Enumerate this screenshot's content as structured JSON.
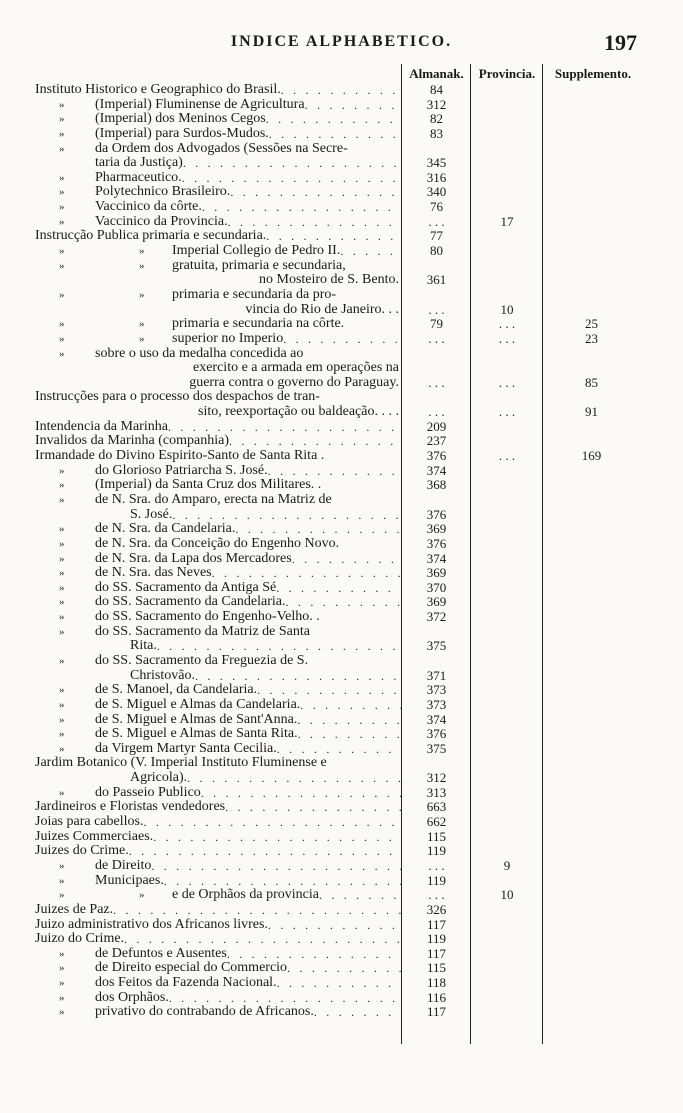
{
  "header": {
    "title": "INDICE ALPHABETICO.",
    "page_number": "197"
  },
  "columns": {
    "almanak": "Almanak.",
    "provincia": "Provincia.",
    "supplemento": "Supplemento."
  },
  "rows": [
    {
      "level": 0,
      "text": "Instituto Historico e Geographico do Brasil.",
      "leader": true,
      "alm": "84"
    },
    {
      "level": 1,
      "ditto": [
        "»"
      ],
      "text": "(Imperial) Fluminense de Agricultura",
      "leader": true,
      "alm": "312"
    },
    {
      "level": 1,
      "ditto": [
        "»"
      ],
      "text": "(Imperial) dos Meninos Cegos",
      "leader": true,
      "alm": "82"
    },
    {
      "level": 1,
      "ditto": [
        "»"
      ],
      "text": "(Imperial) para Surdos-Mudos.",
      "leader": true,
      "alm": "83"
    },
    {
      "level": 1,
      "ditto": [
        "»"
      ],
      "text": "da Ordem dos Advogados (Sessões na Secre-",
      "leader": false
    },
    {
      "level": 1,
      "text": "taria da Justiça)",
      "leader": true,
      "alm": "345"
    },
    {
      "level": 1,
      "ditto": [
        "»"
      ],
      "text": "Pharmaceutico.",
      "leader": true,
      "alm": "316"
    },
    {
      "level": 1,
      "ditto": [
        "»"
      ],
      "text": "Polytechnico Brasileiro.",
      "leader": true,
      "alm": "340"
    },
    {
      "level": 1,
      "ditto": [
        "»"
      ],
      "text": "Vaccinico da côrte.",
      "leader": true,
      "alm": "76"
    },
    {
      "level": 1,
      "ditto": [
        "»"
      ],
      "text": "Vaccinico da Provincia.",
      "leader": true,
      "alm": ". . .",
      "prov": "17"
    },
    {
      "level": 0,
      "text": "Instrucção Publica primaria e secundaria.",
      "leader": true,
      "alm": "77"
    },
    {
      "level": 2,
      "ditto": [
        "»",
        "»"
      ],
      "text": "Imperial Collegio de Pedro II.",
      "leader": true,
      "alm": "80"
    },
    {
      "level": 2,
      "ditto": [
        "»",
        "»"
      ],
      "text": "gratuita, primaria e secundaria,",
      "leader": false
    },
    {
      "cont": "right",
      "text": "no Mosteiro de S. Bento.",
      "leader": false,
      "alm": "361"
    },
    {
      "level": 2,
      "ditto": [
        "»",
        "»"
      ],
      "text": "primaria e secundaria da pro-",
      "leader": false
    },
    {
      "cont": "right",
      "text": "vincia do Rio de Janeiro. . .",
      "leader": false,
      "alm": ". . .",
      "prov": "10"
    },
    {
      "level": 2,
      "ditto": [
        "»",
        "»"
      ],
      "text": "primaria e secundaria na côrte.",
      "leader": false,
      "alm": "79",
      "prov": ". . .",
      "sup": "25"
    },
    {
      "level": 2,
      "ditto": [
        "»",
        "»"
      ],
      "text": "superior no Imperio",
      "leader": true,
      "alm": ". . .",
      "prov": ". . .",
      "sup": "23"
    },
    {
      "level": 1,
      "ditto": [
        "»"
      ],
      "text": "sobre o uso da medalha concedida ao",
      "leader": false,
      "indent": "wide"
    },
    {
      "cont": "right",
      "text": "exercito e a armada em operações na",
      "leader": false
    },
    {
      "cont": "right",
      "text": "guerra contra o governo do Paraguay.",
      "leader": false,
      "alm": ". . .",
      "prov": ". . .",
      "sup": "85"
    },
    {
      "level": 0,
      "text": "Instrucções para o processo dos despachos de tran-",
      "leader": false
    },
    {
      "cont": "right",
      "text": "sito, reexportação ou baldeação. . . .",
      "leader": false,
      "alm": ". . .",
      "prov": ". . .",
      "sup": "91"
    },
    {
      "level": 0,
      "text": "Intendencia da Marinha",
      "leader": true,
      "alm": "209"
    },
    {
      "level": 0,
      "text": "Invalidos da Marinha (companhia)",
      "leader": true,
      "alm": "237"
    },
    {
      "level": 0,
      "text": "Irmandade do Divino Espirito-Santo de Santa Rita .",
      "leader": false,
      "alm": "376",
      "prov": ". . .",
      "sup": "169"
    },
    {
      "level": 1,
      "ditto": [
        "»"
      ],
      "text": "do Glorioso Patriarcha S. José.",
      "leader": true,
      "alm": "374"
    },
    {
      "level": 1,
      "ditto": [
        "»"
      ],
      "text": "(Imperial) da Santa Cruz dos Militares. .",
      "leader": false,
      "alm": "368"
    },
    {
      "level": 1,
      "ditto": [
        "»"
      ],
      "text": "de N. Sra. do Amparo, erecta na Matriz de",
      "leader": false
    },
    {
      "cont": "c2",
      "text": "S. José.",
      "leader": true,
      "alm": "376"
    },
    {
      "level": 1,
      "ditto": [
        "»"
      ],
      "text": "de N. Sra. da Candelaria.",
      "leader": true,
      "alm": "369"
    },
    {
      "level": 1,
      "ditto": [
        "»"
      ],
      "text": "de N. Sra. da Conceição do Engenho Novo.",
      "leader": false,
      "alm": "376"
    },
    {
      "level": 1,
      "ditto": [
        "»"
      ],
      "text": "de N. Sra. da Lapa dos Mercadores",
      "leader": true,
      "alm": "374"
    },
    {
      "level": 1,
      "ditto": [
        "»"
      ],
      "text": "de N. Sra. das Neves",
      "leader": true,
      "alm": "369"
    },
    {
      "level": 1,
      "ditto": [
        "»"
      ],
      "text": "do SS. Sacramento da Antiga Sé",
      "leader": true,
      "alm": "370"
    },
    {
      "level": 1,
      "ditto": [
        "»"
      ],
      "text": "do SS. Sacramento da Candelaria.",
      "leader": true,
      "alm": "369"
    },
    {
      "level": 1,
      "ditto": [
        "»"
      ],
      "text": "do SS. Sacramento do Engenho-Velho. .",
      "leader": false,
      "alm": "372"
    },
    {
      "level": 1,
      "ditto": [
        "»"
      ],
      "text": "do SS. Sacramento da Matriz de Santa",
      "leader": false
    },
    {
      "cont": "c2",
      "text": "Rita.",
      "leader": true,
      "alm": "375"
    },
    {
      "level": 1,
      "ditto": [
        "»"
      ],
      "text": "do SS. Sacramento da Freguezia de S.",
      "leader": false
    },
    {
      "cont": "c2",
      "text": "Christovão.",
      "leader": true,
      "alm": "371"
    },
    {
      "level": 1,
      "ditto": [
        "»"
      ],
      "text": "de S. Manoel, da Candelaria.",
      "leader": true,
      "alm": "373"
    },
    {
      "level": 1,
      "ditto": [
        "»"
      ],
      "text": "de S. Miguel e Almas da Candelaria.",
      "leader": true,
      "alm": "373"
    },
    {
      "level": 1,
      "ditto": [
        "»"
      ],
      "text": "de S. Miguel e Almas de Sant'Anna.",
      "leader": true,
      "alm": "374"
    },
    {
      "level": 1,
      "ditto": [
        "»"
      ],
      "text": "de S. Miguel e Almas de Santa Rita.",
      "leader": true,
      "alm": "376"
    },
    {
      "level": 1,
      "ditto": [
        "»"
      ],
      "text": "da Virgem Martyr Santa Cecilia.",
      "leader": true,
      "alm": "375"
    },
    {
      "level": 0,
      "text": "Jardim Botanico (V. Imperial Instituto Fluminense e",
      "leader": false
    },
    {
      "cont": "c2",
      "text": "Agricola).",
      "leader": true,
      "alm": "312"
    },
    {
      "level": 1,
      "ditto": [
        "»"
      ],
      "text": "do Passeio Publico",
      "leader": true,
      "alm": "313"
    },
    {
      "level": 0,
      "text": "Jardineiros e Floristas vendedores",
      "leader": true,
      "alm": "663"
    },
    {
      "level": 0,
      "text": "Joias para cabellos.",
      "leader": true,
      "alm": "662"
    },
    {
      "level": 0,
      "text": "Juizes Commerciaes.",
      "leader": true,
      "alm": "115"
    },
    {
      "level": 0,
      "text": "Juizes do Crime.",
      "leader": true,
      "alm": "119"
    },
    {
      "level": 1,
      "ditto": [
        "»"
      ],
      "text": "de Direito",
      "leader": true,
      "alm": ". . .",
      "prov": "9"
    },
    {
      "level": 1,
      "ditto": [
        "»"
      ],
      "text": "Municipaes.",
      "leader": true,
      "alm": "119"
    },
    {
      "level": 2,
      "ditto": [
        "»",
        "»"
      ],
      "text": "e de Orphãos da provincia",
      "leader": true,
      "alm": ". . .",
      "prov": "10"
    },
    {
      "level": 0,
      "text": "Juizes de Paz.",
      "leader": true,
      "alm": "326"
    },
    {
      "level": 0,
      "text": "Juizo administrativo dos Africanos livres.",
      "leader": true,
      "alm": "117"
    },
    {
      "level": 0,
      "text": "Juizo do Crime.",
      "leader": true,
      "alm": "119"
    },
    {
      "level": 1,
      "ditto": [
        "»"
      ],
      "text": "de Defuntos e Ausentes",
      "leader": true,
      "alm": "117"
    },
    {
      "level": 1,
      "ditto": [
        "»"
      ],
      "text": "de Direito especial do Commercio",
      "leader": true,
      "alm": "115"
    },
    {
      "level": 1,
      "ditto": [
        "»"
      ],
      "text": "dos Feitos da Fazenda Nacional.",
      "leader": true,
      "alm": "118"
    },
    {
      "level": 1,
      "ditto": [
        "»"
      ],
      "text": "dos Orphãos.",
      "leader": true,
      "alm": "116"
    },
    {
      "level": 1,
      "ditto": [
        "»"
      ],
      "text": "privativo do contrabando de Africanos.",
      "leader": true,
      "alm": "117"
    }
  ]
}
